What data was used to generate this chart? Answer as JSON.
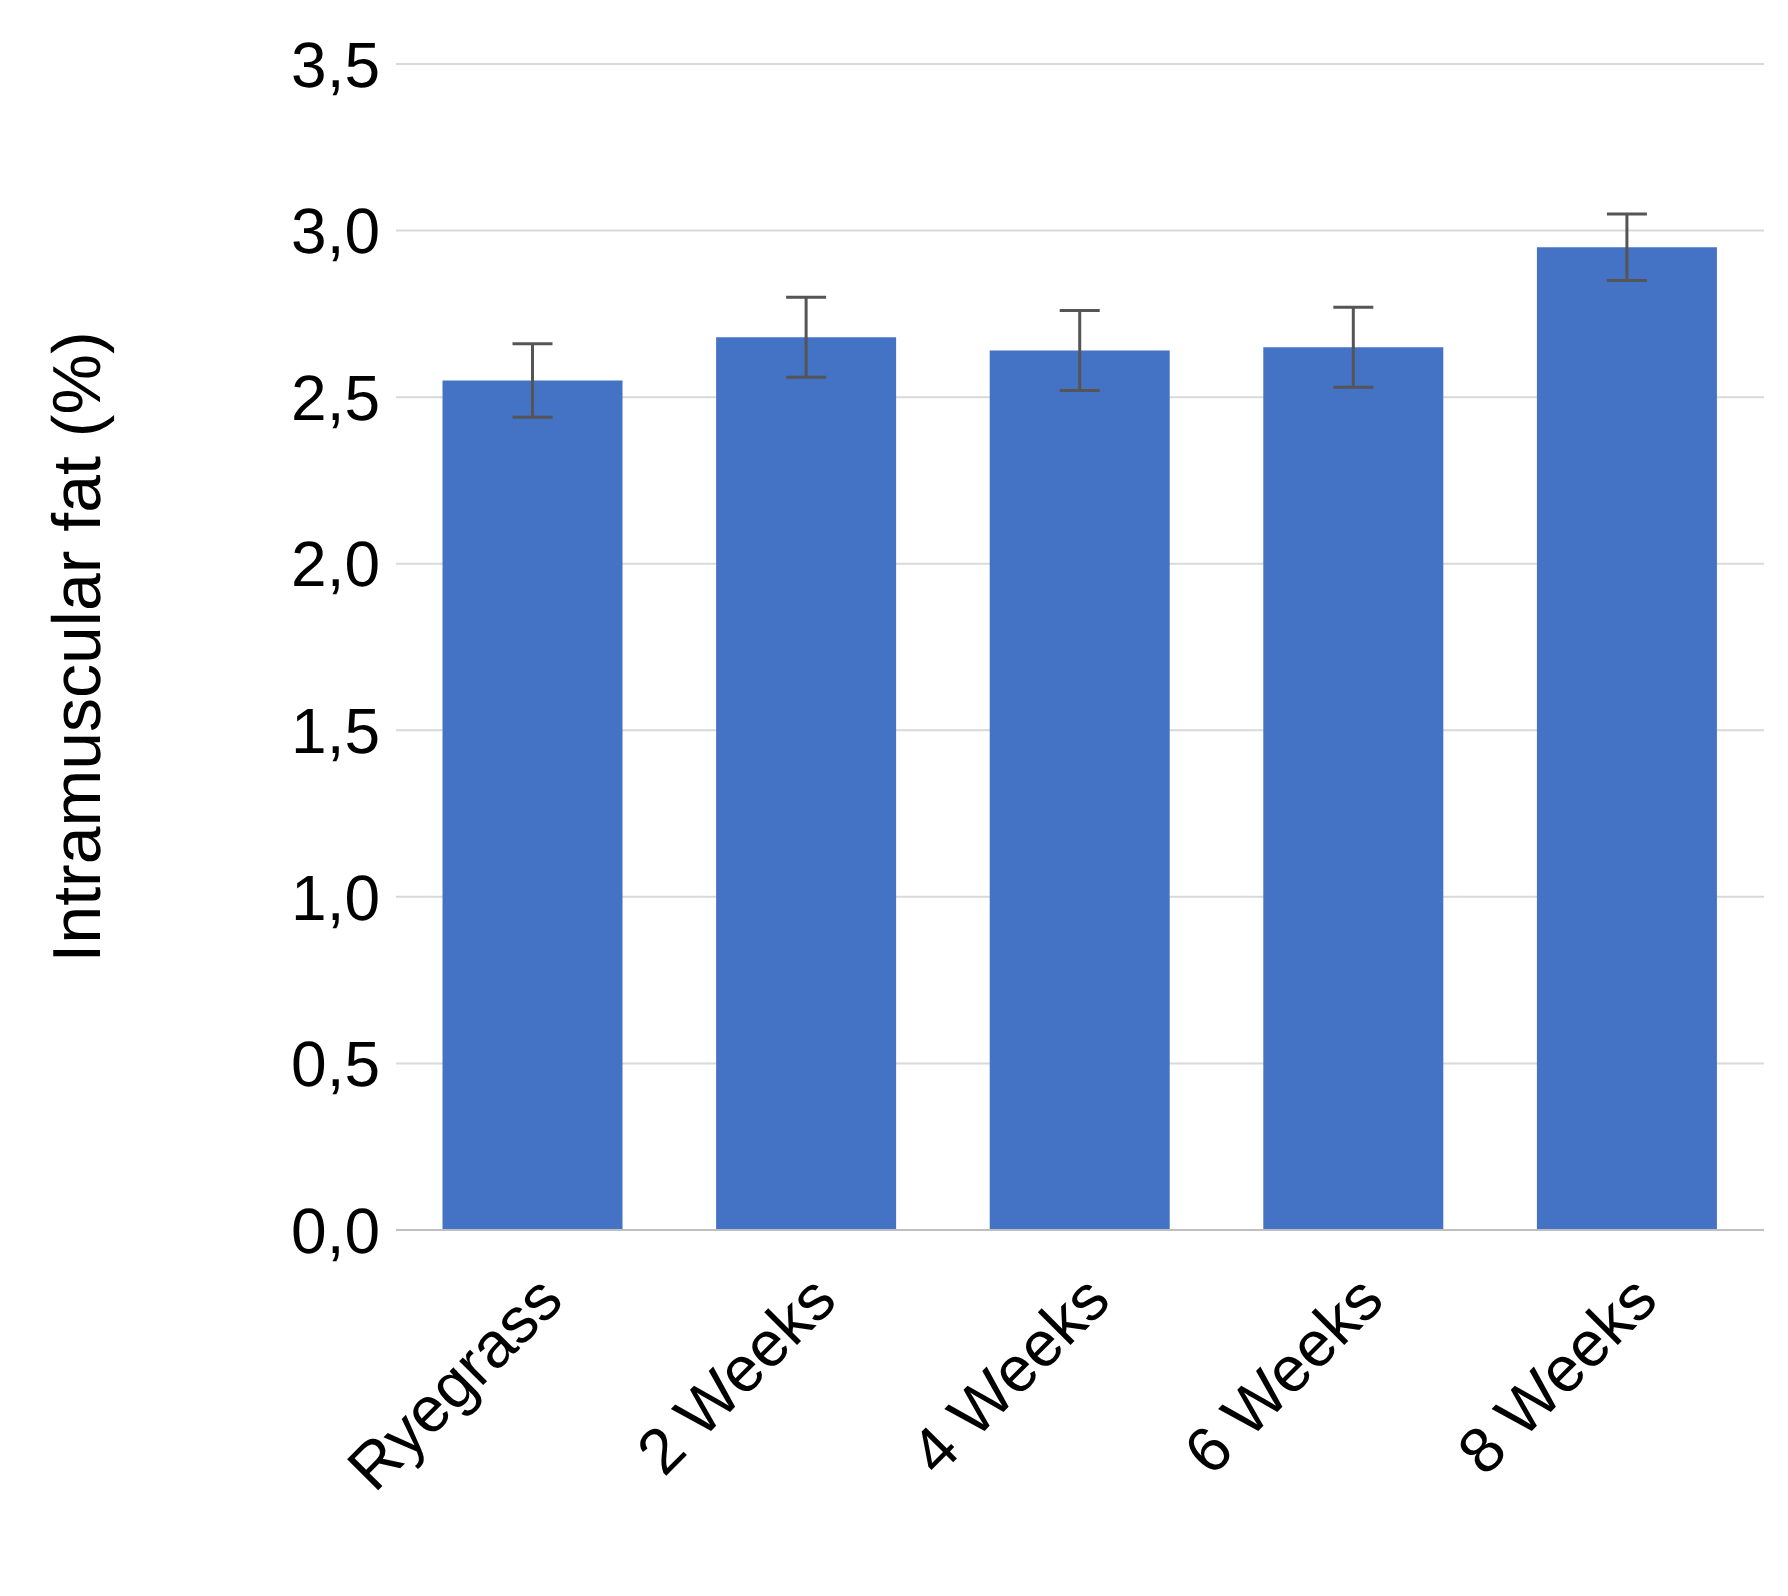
{
  "chart_data": {
    "type": "bar",
    "ylabel": "Intramuscular fat (%)",
    "categories": [
      "Ryegrass",
      "2 Weeks",
      "4 Weeks",
      "6 Weeks",
      "8 Weeks"
    ],
    "values": [
      2.55,
      2.68,
      2.64,
      2.65,
      2.95
    ],
    "errors": [
      0.11,
      0.12,
      0.12,
      0.12,
      0.1
    ],
    "color": "#4472c4",
    "ylim": [
      0,
      3.5
    ],
    "yticks": [
      {
        "value": 0,
        "label": "0,0"
      },
      {
        "value": 0.5,
        "label": "0,5"
      },
      {
        "value": 1,
        "label": "1,0"
      },
      {
        "value": 1.5,
        "label": "1,5"
      },
      {
        "value": 2,
        "label": "2,0"
      },
      {
        "value": 2.5,
        "label": "2,5"
      },
      {
        "value": 3,
        "label": "3,0"
      },
      {
        "value": 3.5,
        "label": "3,5"
      }
    ],
    "grid": "y"
  }
}
